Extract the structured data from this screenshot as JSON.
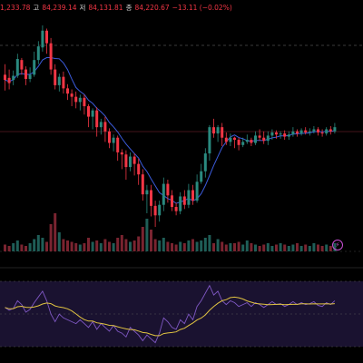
{
  "ohlc": {
    "open_value": "1,233.78",
    "high_label": "고",
    "high_value": "84,239.14",
    "low_label": "저",
    "low_value": "84,131.81",
    "close_label": "종",
    "close_value": "84,220.67",
    "change": "−13.11 (−0.02%)"
  },
  "colors": {
    "background": "#000000",
    "up": "#2a8a7f",
    "down": "#f23645",
    "ma_line": "#3b5bdb",
    "rsi_line": "#7e57c2",
    "rsi_ma": "#e0c341",
    "rsi_band": "#1a1230",
    "alert": "#c94fd6"
  },
  "icons": {
    "alert": "lightning-icon"
  },
  "chart_data": {
    "type": "candlestick",
    "price_series": [
      [
        200,
        195,
        210,
        185
      ],
      [
        197,
        192,
        205,
        186
      ],
      [
        195,
        199,
        204,
        190
      ],
      [
        199,
        215,
        220,
        197
      ],
      [
        214,
        205,
        216,
        200
      ],
      [
        205,
        196,
        208,
        190
      ],
      [
        196,
        200,
        207,
        193
      ],
      [
        200,
        214,
        222,
        198
      ],
      [
        214,
        227,
        232,
        210
      ],
      [
        226,
        242,
        247,
        222
      ],
      [
        242,
        230,
        244,
        220
      ],
      [
        230,
        205,
        235,
        200
      ],
      [
        205,
        190,
        210,
        186
      ],
      [
        190,
        198,
        201,
        184
      ],
      [
        198,
        187,
        203,
        182
      ],
      [
        187,
        182,
        191,
        176
      ],
      [
        182,
        179,
        186,
        170
      ],
      [
        179,
        174,
        184,
        168
      ],
      [
        174,
        178,
        181,
        166
      ],
      [
        178,
        170,
        181,
        162
      ],
      [
        170,
        160,
        172,
        150
      ],
      [
        160,
        166,
        168,
        148
      ],
      [
        166,
        150,
        169,
        141
      ],
      [
        150,
        155,
        158,
        143
      ],
      [
        155,
        146,
        160,
        136
      ],
      [
        146,
        135,
        149,
        130
      ],
      [
        135,
        140,
        143,
        127
      ],
      [
        140,
        126,
        142,
        118
      ],
      [
        126,
        124,
        129,
        110
      ],
      [
        124,
        112,
        128,
        100
      ],
      [
        112,
        122,
        126,
        108
      ],
      [
        122,
        115,
        125,
        104
      ],
      [
        115,
        105,
        120,
        95
      ],
      [
        105,
        86,
        110,
        80
      ],
      [
        86,
        90,
        95,
        68
      ],
      [
        90,
        75,
        95,
        65
      ],
      [
        75,
        66,
        80,
        55
      ],
      [
        66,
        76,
        80,
        60
      ],
      [
        76,
        96,
        102,
        70
      ],
      [
        96,
        85,
        100,
        78
      ],
      [
        85,
        74,
        90,
        70
      ],
      [
        74,
        70,
        78,
        66
      ],
      [
        70,
        84,
        88,
        67
      ],
      [
        84,
        76,
        90,
        72
      ],
      [
        76,
        90,
        96,
        73
      ],
      [
        90,
        80,
        95,
        76
      ],
      [
        80,
        98,
        105,
        78
      ],
      [
        98,
        108,
        115,
        96
      ],
      [
        108,
        125,
        130,
        102
      ],
      [
        125,
        150,
        152,
        118
      ],
      [
        150,
        144,
        158,
        140
      ],
      [
        144,
        150,
        152,
        136
      ],
      [
        150,
        140,
        154,
        132
      ],
      [
        140,
        136,
        145,
        133
      ],
      [
        136,
        140,
        144,
        132
      ],
      [
        140,
        138,
        141,
        130
      ],
      [
        138,
        133,
        140,
        128
      ],
      [
        133,
        136,
        140,
        131
      ],
      [
        136,
        138,
        143,
        134
      ],
      [
        138,
        135,
        140,
        132
      ],
      [
        135,
        142,
        146,
        133
      ],
      [
        142,
        140,
        148,
        137
      ],
      [
        140,
        137,
        146,
        134
      ],
      [
        137,
        142,
        146,
        133
      ],
      [
        142,
        145,
        148,
        138
      ],
      [
        145,
        143,
        147,
        139
      ],
      [
        143,
        144,
        146,
        139
      ],
      [
        144,
        141,
        147,
        138
      ],
      [
        141,
        143,
        146,
        138
      ],
      [
        143,
        146,
        150,
        141
      ],
      [
        146,
        144,
        148,
        141
      ],
      [
        144,
        147,
        149,
        142
      ],
      [
        147,
        145,
        150,
        143
      ],
      [
        145,
        146,
        149,
        142
      ],
      [
        146,
        148,
        151,
        144
      ],
      [
        148,
        145,
        150,
        142
      ],
      [
        145,
        144,
        148,
        141
      ],
      [
        144,
        148,
        150,
        142
      ],
      [
        148,
        146,
        151,
        143
      ],
      [
        146,
        150,
        154,
        144
      ]
    ],
    "volume": [
      5,
      4,
      6,
      8,
      5,
      4,
      6,
      9,
      12,
      10,
      7,
      20,
      28,
      14,
      9,
      8,
      7,
      6,
      5,
      6,
      10,
      7,
      8,
      6,
      9,
      7,
      6,
      10,
      12,
      9,
      7,
      8,
      11,
      18,
      24,
      16,
      9,
      8,
      10,
      7,
      6,
      5,
      7,
      6,
      8,
      9,
      7,
      8,
      10,
      12,
      6,
      9,
      7,
      5,
      6,
      6,
      7,
      5,
      8,
      6,
      5,
      4,
      5,
      6,
      4,
      5,
      6,
      5,
      4,
      5,
      6,
      4,
      5,
      4,
      6,
      5,
      4,
      5,
      4,
      6
    ],
    "rsi": [
      55,
      52,
      54,
      62,
      58,
      50,
      53,
      60,
      66,
      72,
      62,
      48,
      40,
      48,
      44,
      42,
      40,
      38,
      42,
      38,
      34,
      40,
      32,
      38,
      34,
      30,
      36,
      30,
      28,
      24,
      34,
      30,
      26,
      20,
      26,
      22,
      18,
      28,
      44,
      40,
      34,
      32,
      42,
      38,
      48,
      42,
      56,
      62,
      70,
      78,
      68,
      72,
      62,
      58,
      62,
      60,
      56,
      58,
      60,
      56,
      60,
      58,
      55,
      58,
      61,
      58,
      59,
      56,
      58,
      61,
      58,
      60,
      58,
      59,
      61,
      57,
      56,
      60,
      58,
      62
    ]
  }
}
